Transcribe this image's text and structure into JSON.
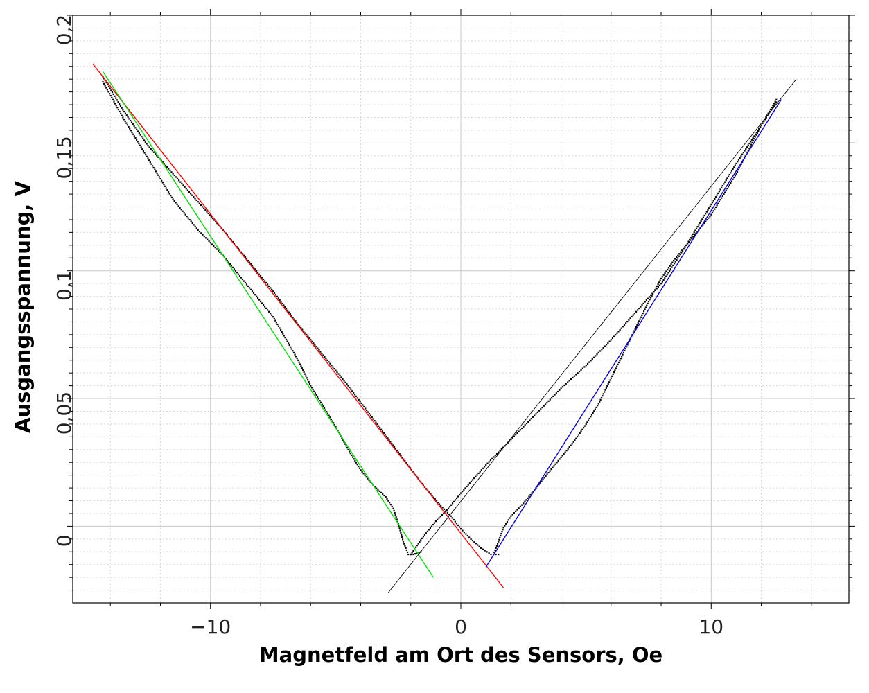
{
  "chart_data": {
    "type": "scatter",
    "xlabel": "Magnetfeld am Ort des Sensors, Oe",
    "ylabel": "Ausgangsspannung, V",
    "xlim": [
      -15.5,
      15.5
    ],
    "ylim": [
      -0.03,
      0.2
    ],
    "x_major_ticks": [
      -10,
      0,
      10
    ],
    "x_tick_labels": [
      "−10",
      "0",
      "10"
    ],
    "y_major_ticks": [
      0,
      0.05,
      0.1,
      0.15,
      0.2
    ],
    "y_tick_labels": [
      "0",
      "0,05",
      "0,1",
      "0,15",
      "0,2"
    ],
    "grid": true,
    "legend": "none",
    "colors": {
      "data": "#000000",
      "fit_red": "#ff0000",
      "fit_green": "#00e000",
      "fit_blue": "#0000ee",
      "fit_black": "#000000",
      "grid_major": "#c8c8c8",
      "grid_minor": "#d6d6d6"
    },
    "series": [
      {
        "type": "points",
        "curves": [
          [
            [
              -14.3,
              0.176
            ],
            [
              -13.5,
              0.163
            ],
            [
              -12.5,
              0.149
            ],
            [
              -11.5,
              0.138
            ],
            [
              -10.5,
              0.127
            ],
            [
              -9.5,
              0.116
            ],
            [
              -8.5,
              0.104
            ],
            [
              -7.5,
              0.092
            ],
            [
              -6.5,
              0.079
            ],
            [
              -5.5,
              0.067
            ],
            [
              -4.5,
              0.055
            ],
            [
              -3.5,
              0.042
            ],
            [
              -2.5,
              0.029
            ],
            [
              -1.5,
              0.016
            ],
            [
              -0.8,
              0.008
            ],
            [
              -0.4,
              0.004
            ],
            [
              0.0,
              -0.001
            ],
            [
              0.4,
              -0.005
            ],
            [
              0.8,
              -0.0085
            ],
            [
              1.2,
              -0.011
            ],
            [
              1.5,
              -0.011
            ]
          ],
          [
            [
              -14.3,
              0.174
            ],
            [
              -13.5,
              0.16
            ],
            [
              -12.5,
              0.144
            ],
            [
              -11.5,
              0.128
            ],
            [
              -10.5,
              0.116
            ],
            [
              -9.5,
              0.106
            ],
            [
              -8.5,
              0.094
            ],
            [
              -7.5,
              0.082
            ],
            [
              -6.5,
              0.065
            ],
            [
              -6.0,
              0.055
            ],
            [
              -5.5,
              0.047
            ],
            [
              -5.0,
              0.039
            ],
            [
              -4.5,
              0.03
            ],
            [
              -4.0,
              0.022
            ],
            [
              -3.5,
              0.016
            ],
            [
              -3.0,
              0.0115
            ],
            [
              -2.7,
              0.007
            ],
            [
              -2.5,
              0.001
            ],
            [
              -2.3,
              -0.006
            ],
            [
              -2.1,
              -0.011
            ],
            [
              -1.9,
              -0.011
            ],
            [
              -1.6,
              -0.01
            ]
          ],
          [
            [
              -2.0,
              -0.011
            ],
            [
              -1.5,
              -0.004
            ],
            [
              -1.0,
              0.002
            ],
            [
              -0.5,
              0.007
            ],
            [
              0.0,
              0.013
            ],
            [
              1.0,
              0.024
            ],
            [
              2.0,
              0.034
            ],
            [
              3.0,
              0.044
            ],
            [
              4.0,
              0.054
            ],
            [
              5.0,
              0.063
            ],
            [
              6.0,
              0.073
            ],
            [
              7.0,
              0.084
            ],
            [
              8.0,
              0.095
            ],
            [
              9.0,
              0.11
            ],
            [
              10.0,
              0.126
            ],
            [
              11.0,
              0.142
            ],
            [
              12.0,
              0.157
            ],
            [
              12.6,
              0.167
            ]
          ],
          [
            [
              1.3,
              -0.011
            ],
            [
              1.5,
              -0.006
            ],
            [
              1.7,
              -0.0005
            ],
            [
              2.0,
              0.004
            ],
            [
              2.5,
              0.009
            ],
            [
              3.0,
              0.015
            ],
            [
              3.5,
              0.021
            ],
            [
              4.0,
              0.027
            ],
            [
              4.5,
              0.033
            ],
            [
              5.0,
              0.04
            ],
            [
              5.5,
              0.048
            ],
            [
              6.0,
              0.058
            ],
            [
              6.5,
              0.068
            ],
            [
              7.0,
              0.078
            ],
            [
              7.5,
              0.088
            ],
            [
              8.0,
              0.097
            ],
            [
              8.5,
              0.104
            ],
            [
              9.0,
              0.11
            ],
            [
              10.0,
              0.122
            ],
            [
              11.0,
              0.138
            ],
            [
              12.0,
              0.157
            ],
            [
              12.6,
              0.166
            ]
          ]
        ]
      },
      {
        "type": "line",
        "color_key": "fit_red",
        "points": [
          [
            -14.7,
            0.181
          ],
          [
            1.7,
            -0.024
          ]
        ]
      },
      {
        "type": "line",
        "color_key": "fit_green",
        "points": [
          [
            -14.3,
            0.178
          ],
          [
            -1.1,
            -0.02
          ]
        ]
      },
      {
        "type": "line",
        "color_key": "fit_blue",
        "points": [
          [
            1.0,
            -0.016
          ],
          [
            12.8,
            0.167
          ]
        ]
      },
      {
        "type": "line",
        "color_key": "fit_black",
        "points": [
          [
            -2.9,
            -0.026
          ],
          [
            13.4,
            0.175
          ]
        ]
      }
    ]
  }
}
